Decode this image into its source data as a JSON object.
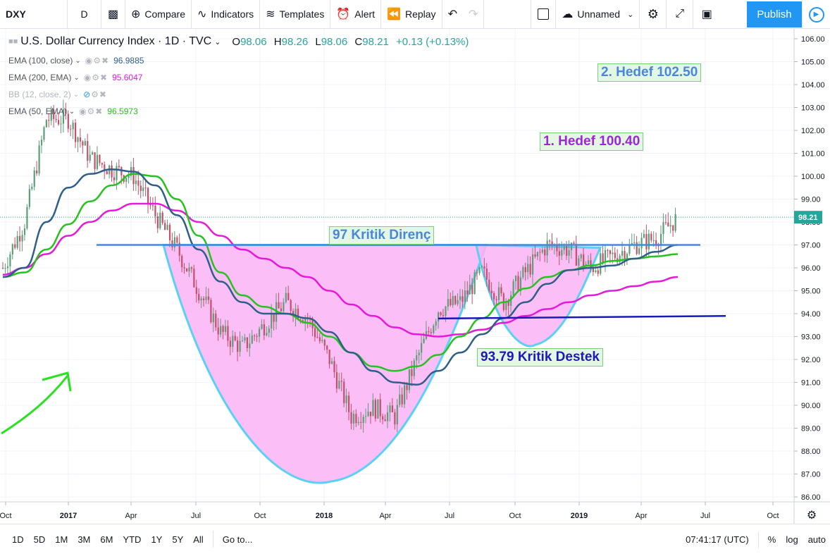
{
  "toolbar": {
    "symbol": "DXY",
    "interval": "D",
    "compare": "Compare",
    "indicators": "Indicators",
    "templates": "Templates",
    "alert": "Alert",
    "replay": "Replay",
    "layout_name": "Unnamed",
    "publish": "Publish"
  },
  "legend": {
    "title": "U.S. Dollar Currency Index · 1D · TVC",
    "open_label": "O",
    "open": "98.06",
    "high_label": "H",
    "high": "98.26",
    "low_label": "L",
    "low": "98.06",
    "close_label": "C",
    "close": "98.21",
    "change": "+0.13 (+0.13%)",
    "indicators": [
      {
        "name": "EMA (100, close)",
        "value": "96.9885",
        "color": "#2f5e8a"
      },
      {
        "name": "EMA (200, EMA)",
        "value": "95.6047",
        "color": "#e619d8"
      },
      {
        "name": "BB (12, close, 2)",
        "value": "",
        "color": "#b2b5be"
      },
      {
        "name": "EMA (50, EMA)",
        "value": "96.5973",
        "color": "#27c21f"
      }
    ]
  },
  "annotations": {
    "target2": "2. Hedef 102.50",
    "target1": "1. Hedef 100.40",
    "resistance": "97 Kritik Direnç",
    "support": "93.79 Kritik Destek"
  },
  "price_axis": {
    "ticks": [
      "106.00",
      "105.00",
      "104.00",
      "103.00",
      "102.00",
      "101.00",
      "100.00",
      "99.00",
      "98.00",
      "97.00",
      "96.00",
      "95.00",
      "94.00",
      "93.00",
      "92.00",
      "91.00",
      "90.00",
      "89.00",
      "88.00",
      "87.00",
      "86.00"
    ],
    "last_price": "98.21"
  },
  "time_axis": {
    "ticks": [
      "Oct",
      "2017",
      "Apr",
      "Jul",
      "Oct",
      "2018",
      "Apr",
      "Jul",
      "Oct",
      "2019",
      "Apr",
      "Jul",
      "Oct"
    ]
  },
  "chart_data": {
    "type": "line",
    "title": "U.S. Dollar Currency Index · 1D · TVC",
    "ylim": [
      86,
      106
    ],
    "x": [
      "2016-10",
      "2016-11",
      "2016-12",
      "2017-01",
      "2017-02",
      "2017-03",
      "2017-04",
      "2017-05",
      "2017-06",
      "2017-07",
      "2017-08",
      "2017-09",
      "2017-10",
      "2017-11",
      "2017-12",
      "2018-01",
      "2018-02",
      "2018-03",
      "2018-04",
      "2018-05",
      "2018-06",
      "2018-07",
      "2018-08",
      "2018-09",
      "2018-10",
      "2018-11",
      "2018-12",
      "2019-01",
      "2019-02",
      "2019-03",
      "2019-04",
      "2019-05"
    ],
    "series": [
      {
        "name": "DXY",
        "values": [
          96.0,
          98.0,
          102.5,
          102.5,
          100.8,
          100.3,
          100.0,
          98.3,
          96.8,
          95.0,
          93.2,
          92.5,
          93.5,
          94.5,
          93.8,
          92.0,
          89.5,
          89.9,
          89.5,
          92.0,
          94.2,
          94.5,
          95.8,
          94.5,
          95.8,
          97.0,
          96.8,
          96.0,
          96.5,
          97.0,
          97.3,
          98.2
        ]
      },
      {
        "name": "EMA (100, close)",
        "values": [
          95.6,
          96.0,
          98.0,
          99.5,
          100.1,
          100.3,
          100.2,
          99.6,
          98.3,
          96.8,
          95.4,
          94.5,
          94.0,
          94.0,
          93.8,
          93.2,
          92.3,
          91.5,
          91.0,
          90.9,
          91.5,
          92.3,
          93.1,
          93.8,
          94.5,
          95.3,
          95.9,
          96.0,
          96.1,
          96.4,
          96.7,
          97.0
        ]
      },
      {
        "name": "EMA (200, EMA)",
        "values": [
          95.7,
          96.0,
          96.6,
          97.4,
          98.0,
          98.5,
          98.8,
          98.8,
          98.5,
          98.0,
          97.4,
          96.8,
          96.4,
          96.0,
          95.6,
          95.0,
          94.4,
          93.9,
          93.4,
          93.1,
          93.0,
          93.1,
          93.3,
          93.6,
          93.9,
          94.2,
          94.5,
          94.8,
          95.0,
          95.2,
          95.4,
          95.6
        ]
      },
      {
        "name": "EMA (50, EMA)",
        "values": [
          95.6,
          95.8,
          96.8,
          97.9,
          98.9,
          99.6,
          100.1,
          100.0,
          99.0,
          97.4,
          95.8,
          94.8,
          94.3,
          94.0,
          93.6,
          93.0,
          92.3,
          91.7,
          91.5,
          91.7,
          92.2,
          93.0,
          93.8,
          94.5,
          95.1,
          95.6,
          95.9,
          96.1,
          96.3,
          96.4,
          96.5,
          96.6
        ]
      }
    ],
    "hlines": [
      {
        "label": "97 Kritik Direnç",
        "y": 97.0
      },
      {
        "label": "93.79 Kritik Destek",
        "y": 93.79
      }
    ]
  },
  "bottom": {
    "ranges": [
      "1D",
      "5D",
      "1M",
      "3M",
      "6M",
      "YTD",
      "1Y",
      "5Y",
      "All"
    ],
    "goto": "Go to...",
    "clock": "07:41:17 (UTC)",
    "pct": "%",
    "log": "log",
    "auto": "auto"
  }
}
